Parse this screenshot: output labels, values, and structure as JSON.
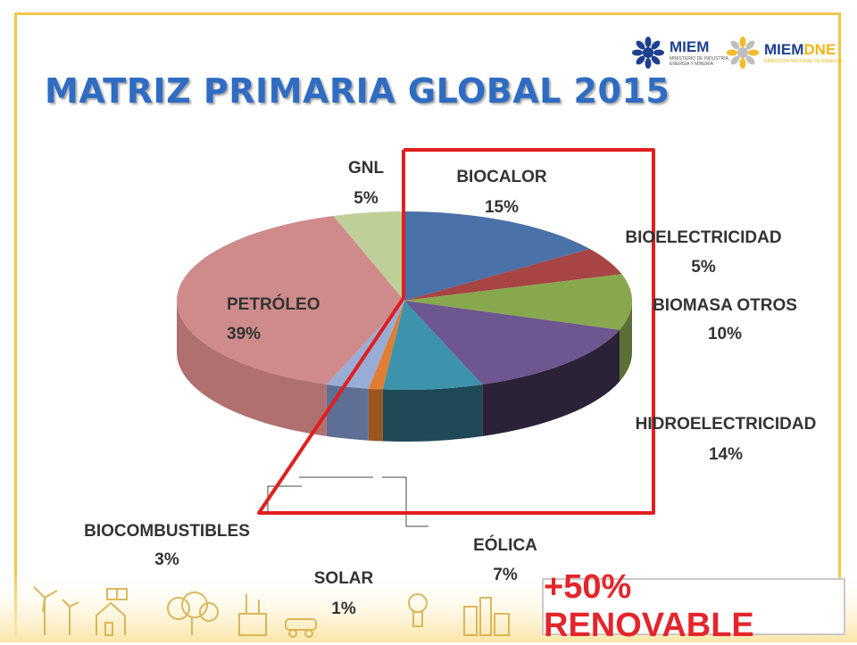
{
  "slide": {
    "title": "MATRIZ PRIMARIA GLOBAL 2015",
    "badge": "+50% RENOVABLE"
  },
  "logos": {
    "miem": {
      "name": "MIEM",
      "sub1": "MINISTERIO DE INDUSTRIA,",
      "sub2": "ENERGÍA Y MINERÍA",
      "color": "#1d3f8f",
      "icon": "sun-flower-icon"
    },
    "miemdne": {
      "name_a": "MIEM",
      "name_b": "DNE",
      "sub": "DIRECCIÓN NACIONAL DE ENERGÍA",
      "color_a": "#1d3f8f",
      "color_b": "#f2b516",
      "icon": "sun-flower-icon"
    }
  },
  "chart_data": {
    "type": "pie",
    "title": "",
    "slices": [
      {
        "name": "BIOCALOR",
        "value": 15,
        "pct": "15%",
        "color": "#4a71a8",
        "side": "#2f4d78"
      },
      {
        "name": "BIOELECTRICIDAD",
        "value": 5,
        "pct": "5%",
        "color": "#a74444",
        "side": "#6e2c2c"
      },
      {
        "name": "BIOMASA OTROS",
        "value": 10,
        "pct": "10%",
        "color": "#88a84e",
        "side": "#5b7133"
      },
      {
        "name": "HIDROELECTRICIDAD",
        "value": 14,
        "pct": "14%",
        "color": "#6e5690",
        "side": "#2b2238"
      },
      {
        "name": "EÓLICA",
        "value": 7,
        "pct": "7%",
        "color": "#3c93ab",
        "side": "#1d4a56"
      },
      {
        "name": "SOLAR",
        "value": 1,
        "pct": "1%",
        "color": "#e07d32",
        "side": "#9c5421"
      },
      {
        "name": "BIOCOMBUSTIBLES",
        "value": 3,
        "pct": "3%",
        "color": "#98acd6",
        "side": "#5e6f95"
      },
      {
        "name": "PETRÓLEO",
        "value": 39,
        "pct": "39%",
        "color": "#cf8b8b",
        "side": "#b07070"
      },
      {
        "name": "GNL",
        "value": 5,
        "pct": "5%",
        "color": "#bfcf98",
        "side": "#8e9c6a"
      }
    ],
    "highlight": {
      "color": "#e01f1f"
    }
  }
}
